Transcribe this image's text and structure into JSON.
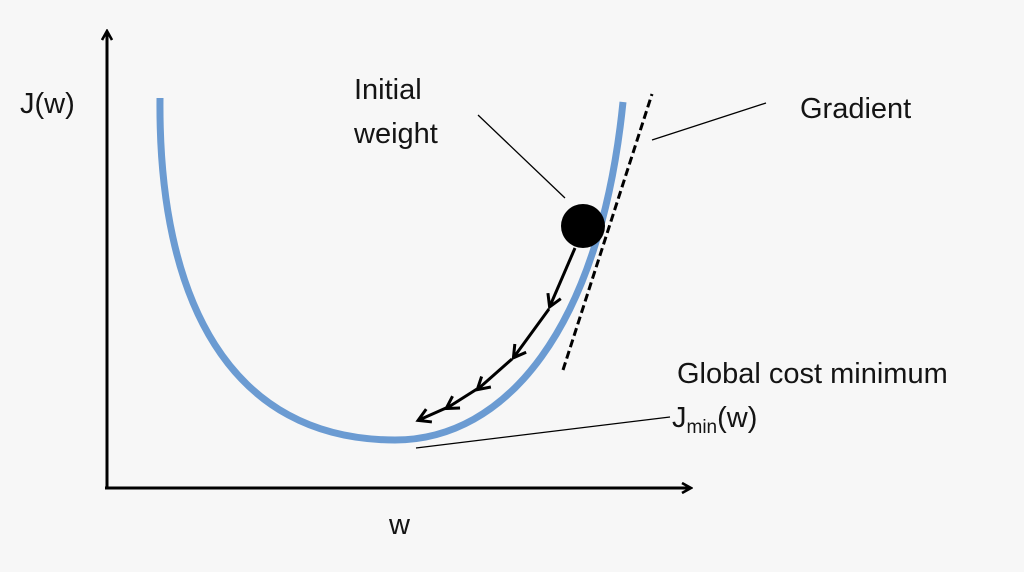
{
  "diagram": {
    "y_axis_label": "J(w)",
    "x_axis_label": "w",
    "initial_weight_label_line1": "Initial",
    "initial_weight_label_line2": "weight",
    "gradient_label": "Gradient",
    "minimum_label": "Global cost minimum",
    "minimum_symbol_base": "J",
    "minimum_symbol_subscript": "min",
    "minimum_symbol_suffix": "(w)"
  },
  "colors": {
    "curve": "#6b9bd2",
    "ink": "#000000",
    "background": "#f7f7f7"
  }
}
